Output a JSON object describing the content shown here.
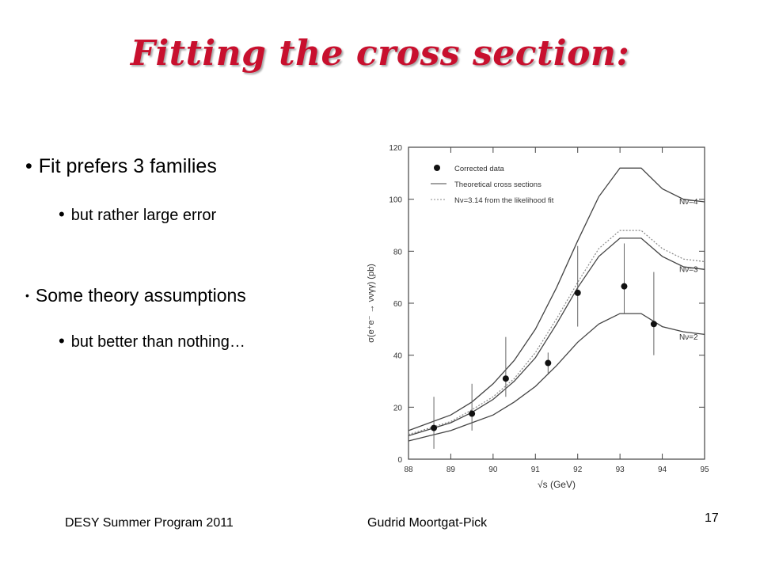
{
  "slide": {
    "title": "Fitting the cross section:",
    "bullets": [
      {
        "text": "Fit prefers 3 families"
      },
      {
        "text": "but rather large error"
      },
      {
        "text": "Some theory assumptions"
      },
      {
        "text": "but better than nothing…"
      }
    ],
    "footer": {
      "left": "DESY Summer Program 2011",
      "center": "Gudrid Moortgat-Pick",
      "page": "17"
    },
    "colors": {
      "title": "#c8102e",
      "text": "#000000"
    }
  },
  "chart_data": {
    "type": "scatter",
    "xlabel": "√s (GeV)",
    "ylabel": "σ(e⁺e⁻ → ννγγ) (pb)",
    "xlim": [
      88,
      95
    ],
    "ylim": [
      0,
      120
    ],
    "xticks": [
      "88",
      "89",
      "90",
      "91",
      "92",
      "93",
      "94",
      "95"
    ],
    "yticks": [
      "0",
      "20",
      "40",
      "60",
      "80",
      "100",
      "120"
    ],
    "legend_position": "top-left",
    "legend": [
      "Corrected data",
      "Theoretical cross sections",
      "Nν=3.14 from the likelihood fit"
    ],
    "curve_labels": [
      "Nν=4",
      "Nν=3",
      "Nν=2"
    ],
    "data_points": [
      {
        "x": 88.6,
        "y": 12,
        "err_lo": 4,
        "err_hi": 24
      },
      {
        "x": 89.5,
        "y": 17.5,
        "err_lo": 11,
        "err_hi": 29
      },
      {
        "x": 90.3,
        "y": 31,
        "err_lo": 24,
        "err_hi": 47
      },
      {
        "x": 91.3,
        "y": 37,
        "err_lo": 33,
        "err_hi": 41
      },
      {
        "x": 92.0,
        "y": 64,
        "err_lo": 51,
        "err_hi": 82
      },
      {
        "x": 93.1,
        "y": 66.5,
        "err_lo": 56,
        "err_hi": 83
      },
      {
        "x": 93.8,
        "y": 52,
        "err_lo": 40,
        "err_hi": 72
      }
    ],
    "series": [
      {
        "name": "Nν=4",
        "style": "solid",
        "x": [
          88,
          88.5,
          89,
          89.5,
          90,
          90.5,
          91,
          91.5,
          92,
          92.5,
          93,
          93.5,
          94,
          94.5,
          95
        ],
        "y": [
          11,
          14,
          17,
          22,
          29,
          38,
          50,
          66,
          84,
          101,
          112,
          112,
          104,
          100,
          99
        ]
      },
      {
        "name": "Nν=3.14 from the likelihood fit",
        "style": "dotted",
        "x": [
          88,
          88.5,
          89,
          89.5,
          90,
          90.5,
          91,
          91.5,
          92,
          92.5,
          93,
          93.5,
          94,
          94.5,
          95
        ],
        "y": [
          9.5,
          12,
          14.5,
          19,
          24,
          31,
          41,
          54,
          68,
          81,
          88,
          88,
          81,
          77,
          76
        ]
      },
      {
        "name": "Nν=3",
        "style": "solid",
        "x": [
          88,
          88.5,
          89,
          89.5,
          90,
          90.5,
          91,
          91.5,
          92,
          92.5,
          93,
          93.5,
          94,
          94.5,
          95
        ],
        "y": [
          9,
          11.5,
          14,
          18,
          23,
          30,
          39,
          52,
          66,
          78,
          85,
          85,
          78,
          74,
          73
        ]
      },
      {
        "name": "Nν=2",
        "style": "solid",
        "x": [
          88,
          88.5,
          89,
          89.5,
          90,
          90.5,
          91,
          91.5,
          92,
          92.5,
          93,
          93.5,
          94,
          94.5,
          95
        ],
        "y": [
          7,
          9,
          11,
          14,
          17,
          22,
          28,
          36,
          45,
          52,
          56,
          56,
          51,
          49,
          48
        ]
      }
    ]
  }
}
